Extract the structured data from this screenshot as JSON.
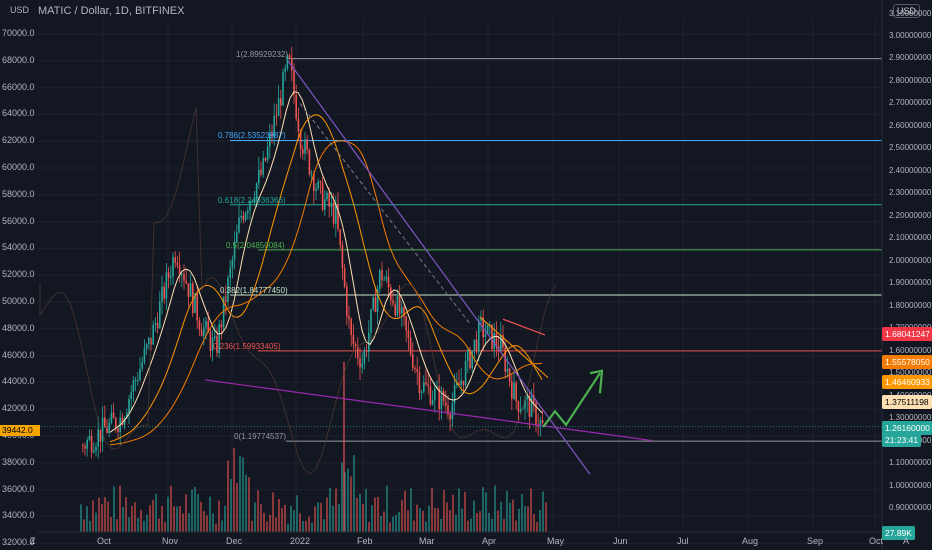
{
  "header": {
    "symbol": "MATIC / Dollar, 1D, BITFINEX"
  },
  "currency": {
    "left": "USD",
    "right": "USD"
  },
  "left_axis": [
    "70000.0",
    "68000.0",
    "66000.0",
    "64000.0",
    "62000.0",
    "60000.0",
    "58000.0",
    "56000.0",
    "54000.0",
    "52000.0",
    "50000.0",
    "48000.0",
    "46000.0",
    "44000.0",
    "42000.0",
    "40000.0",
    "38000.0",
    "36000.0",
    "34000.0",
    "32000.0"
  ],
  "right_axis": [
    "3.10000000",
    "3.00000000",
    "2.90000000",
    "2.80000000",
    "2.70000000",
    "2.60000000",
    "2.50000000",
    "2.40000000",
    "2.30000000",
    "2.20000000",
    "2.10000000",
    "2.00000000",
    "1.90000000",
    "1.80000000",
    "1.70000000",
    "1.60000000",
    "1.50000000",
    "1.40000000",
    "1.30000000",
    "1.20000000",
    "1.10000000",
    "1.00000000",
    "0.90000000"
  ],
  "x_axis": [
    "Oct",
    "Nov",
    "Dec",
    "2022",
    "Feb",
    "Mar",
    "Apr",
    "May",
    "Jun",
    "Jul",
    "Aug",
    "Sep",
    "Oct"
  ],
  "fib_levels": [
    {
      "label": "1(2.89929232)",
      "color": "#9598a1"
    },
    {
      "label": "0.786(2.53523987)",
      "color": "#42a5f5"
    },
    {
      "label": "0.618(2.24936366)",
      "color": "#26a69a"
    },
    {
      "label": "0.5(2.04850084)",
      "color": "#4caf50"
    },
    {
      "label": "0.382(1.84777450)",
      "color": "#c8e6c9"
    },
    {
      "label": "0.236(1.59933405)",
      "color": "#ef5350"
    },
    {
      "label": "0(1.19774537)",
      "color": "#9598a1"
    }
  ],
  "price_tags": [
    {
      "text": "1.68041247",
      "color": "#f23645"
    },
    {
      "text": "1.55578050",
      "color": "#f57c00"
    },
    {
      "text": "1.46460933",
      "color": "#ff9800"
    },
    {
      "text": "1.37511198",
      "color": "#ffe0b2"
    },
    {
      "text": "1.26160000",
      "color": "#26a69a"
    },
    {
      "text": "21:23:41",
      "color": "#26a69a"
    }
  ],
  "left_price_tag": "39442.0",
  "volume_tag": "27.89K",
  "chart_data": {
    "type": "candlestick",
    "title": "MATIC / Dollar, 1D, BITFINEX",
    "y_range": [
      0.85,
      3.12
    ],
    "highs": [
      2.89929232
    ],
    "lows": [
      1.19774537
    ],
    "last_price": 1.2616
  }
}
